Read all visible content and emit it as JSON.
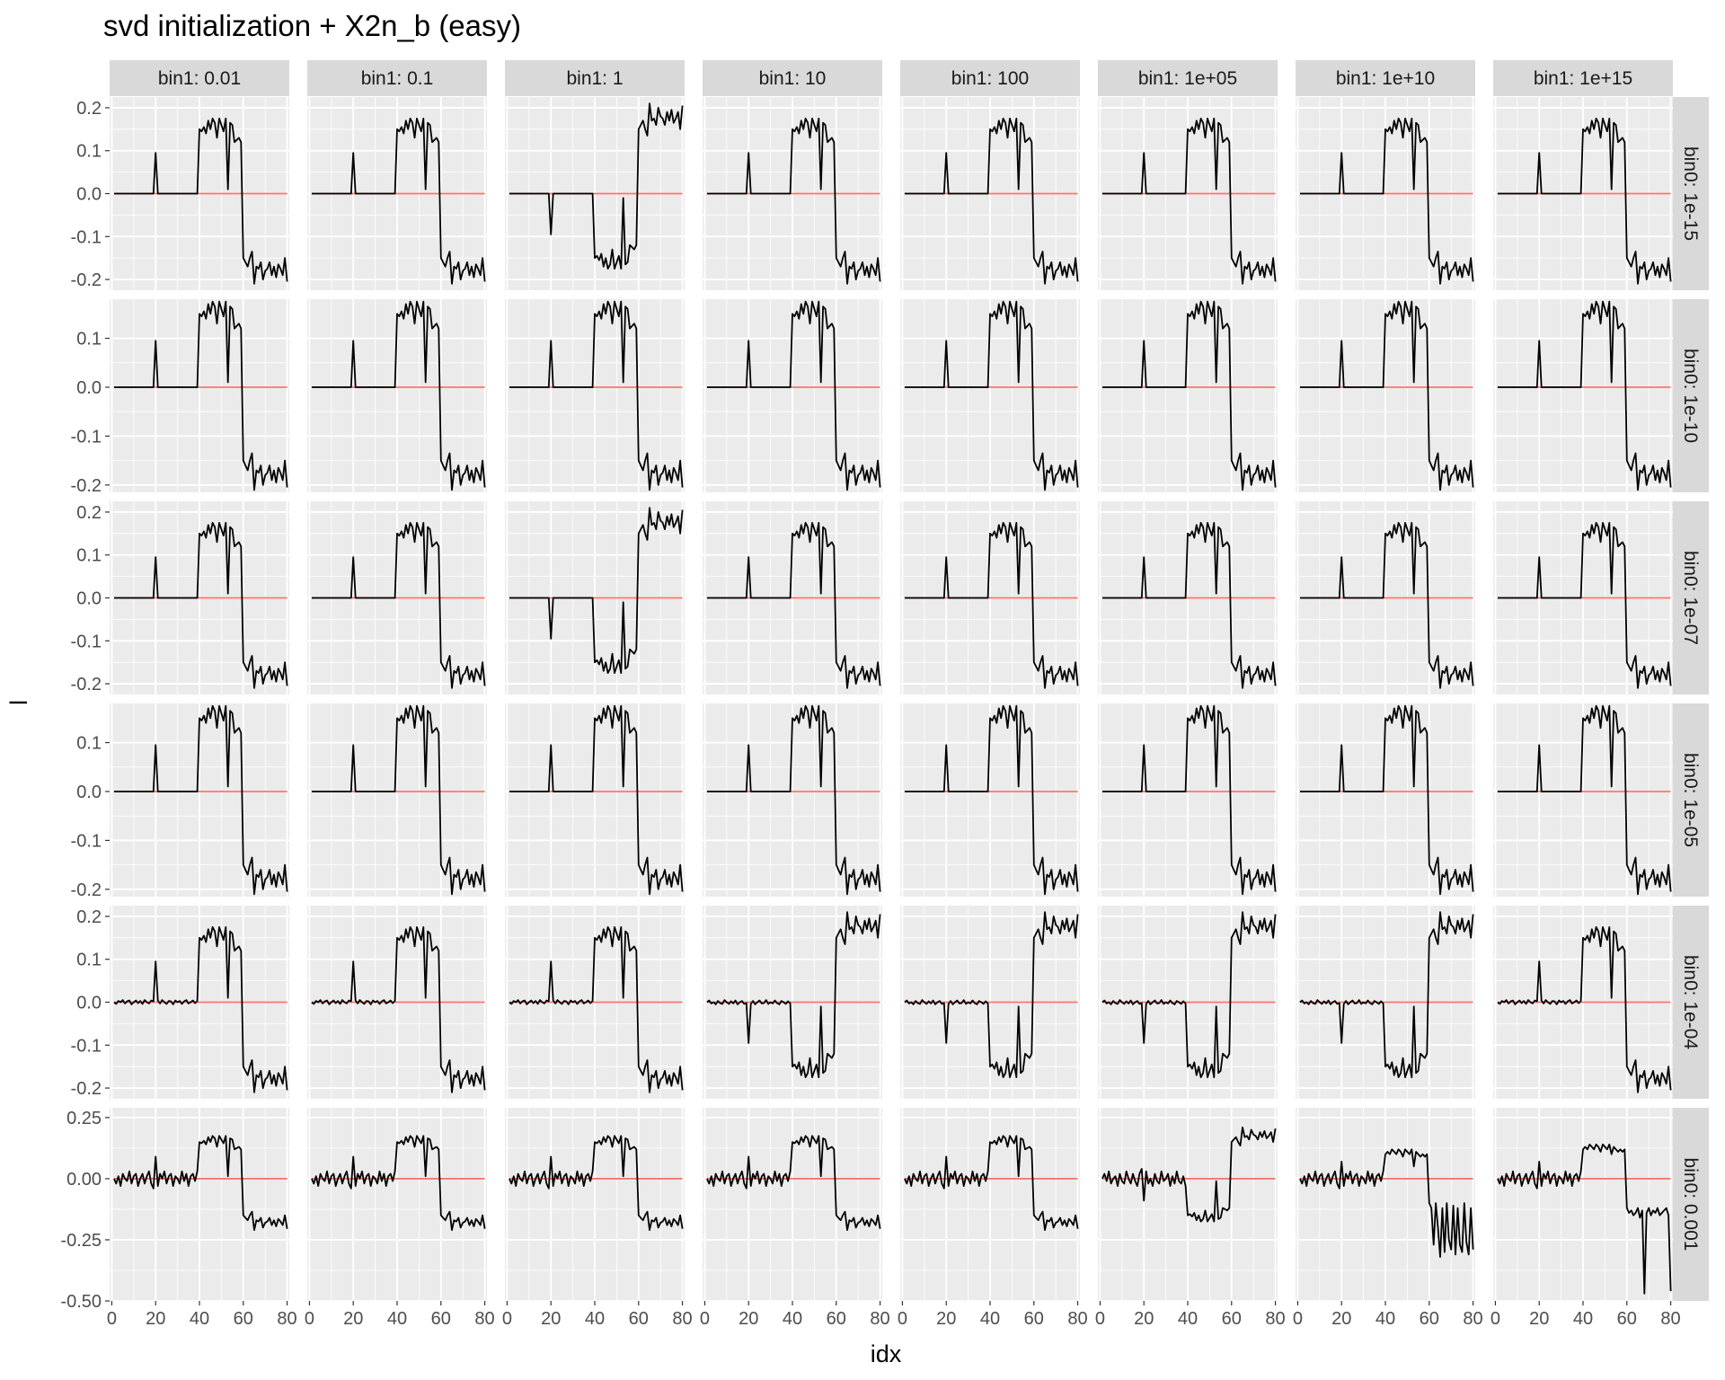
{
  "chart_data": {
    "type": "line",
    "title": "svd initialization + X2n_b (easy)",
    "xlabel": "idx",
    "ylabel": "l",
    "facet_columns": [
      "bin1: 0.01",
      "bin1: 0.1",
      "bin1: 1",
      "bin1: 10",
      "bin1: 100",
      "bin1: 1e+05",
      "bin1: 1e+10",
      "bin1: 1e+15"
    ],
    "facet_rows": [
      "bin0: 1e-15",
      "bin0: 1e-10",
      "bin0: 1e-07",
      "bin0: 1e-05",
      "bin0: 1e-04",
      "bin0: 0.001"
    ],
    "xlim": [
      -1,
      81
    ],
    "x_ticks": [
      0,
      20,
      40,
      60,
      80
    ],
    "x_tick_labels": [
      "0",
      "20",
      "40",
      "60",
      "80"
    ],
    "x": [
      1,
      2,
      3,
      4,
      5,
      6,
      7,
      8,
      9,
      10,
      11,
      12,
      13,
      14,
      15,
      16,
      17,
      18,
      19,
      20,
      21,
      22,
      23,
      24,
      25,
      26,
      27,
      28,
      29,
      30,
      31,
      32,
      33,
      34,
      35,
      36,
      37,
      38,
      39,
      40,
      41,
      42,
      43,
      44,
      45,
      46,
      47,
      48,
      49,
      50,
      51,
      52,
      53,
      54,
      55,
      56,
      57,
      58,
      59,
      60,
      61,
      62,
      63,
      64,
      65,
      66,
      67,
      68,
      69,
      70,
      71,
      72,
      73,
      74,
      75,
      76,
      77,
      78,
      79,
      80
    ],
    "reference_line": {
      "y": 0,
      "color": "#f8766d"
    },
    "rows": [
      {
        "facet": "bin0: 1e-15",
        "ylim": [
          -0.225,
          0.225
        ],
        "y_ticks": [
          -0.2,
          -0.1,
          0.0,
          0.1,
          0.2
        ],
        "y_tick_labels": [
          "-0.2",
          "-0.1",
          "0.0",
          "0.1",
          "0.2"
        ],
        "curves": [
          "A",
          "A",
          "F",
          "A",
          "A",
          "A",
          "A",
          "A"
        ]
      },
      {
        "facet": "bin0: 1e-10",
        "ylim": [
          -0.215,
          0.18
        ],
        "y_ticks": [
          -0.2,
          -0.1,
          0.0,
          0.1
        ],
        "y_tick_labels": [
          "-0.2",
          "-0.1",
          "0.0",
          "0.1"
        ],
        "curves": [
          "A",
          "A",
          "A",
          "A",
          "A",
          "A",
          "A",
          "A"
        ]
      },
      {
        "facet": "bin0: 1e-07",
        "ylim": [
          -0.225,
          0.225
        ],
        "y_ticks": [
          -0.2,
          -0.1,
          0.0,
          0.1,
          0.2
        ],
        "y_tick_labels": [
          "-0.2",
          "-0.1",
          "0.0",
          "0.1",
          "0.2"
        ],
        "curves": [
          "A",
          "A",
          "F",
          "A",
          "A",
          "A",
          "A",
          "A"
        ]
      },
      {
        "facet": "bin0: 1e-05",
        "ylim": [
          -0.215,
          0.18
        ],
        "y_ticks": [
          -0.2,
          -0.1,
          0.0,
          0.1
        ],
        "y_tick_labels": [
          "-0.2",
          "-0.1",
          "0.0",
          "0.1"
        ],
        "curves": [
          "A",
          "A",
          "A",
          "A",
          "A",
          "A",
          "A",
          "A"
        ]
      },
      {
        "facet": "bin0: 1e-04",
        "ylim": [
          -0.225,
          0.225
        ],
        "y_ticks": [
          -0.2,
          -0.1,
          0.0,
          0.1,
          0.2
        ],
        "y_tick_labels": [
          "-0.2",
          "-0.1",
          "0.0",
          "0.1",
          "0.2"
        ],
        "curves": [
          "B",
          "B",
          "B",
          "G",
          "G",
          "G",
          "G",
          "B"
        ]
      },
      {
        "facet": "bin0: 0.001",
        "ylim": [
          -0.5,
          0.29
        ],
        "y_ticks": [
          -0.5,
          -0.25,
          0.0,
          0.25
        ],
        "y_tick_labels": [
          "-0.50",
          "-0.25",
          "0.00",
          "0.25"
        ],
        "curves": [
          "C",
          "C",
          "C",
          "C",
          "C",
          "H",
          "D",
          "E"
        ]
      }
    ],
    "curves": {
      "A": [
        0,
        0,
        0,
        0,
        0,
        0,
        0,
        0,
        0,
        0,
        0,
        0,
        0,
        0,
        0,
        0,
        0,
        0,
        0,
        0.095,
        0,
        0,
        0,
        0,
        0,
        0,
        0,
        0,
        0,
        0,
        0,
        0,
        0,
        0,
        0,
        0,
        0,
        0,
        0,
        0.15,
        0.145,
        0.155,
        0.14,
        0.17,
        0.15,
        0.175,
        0.165,
        0.13,
        0.175,
        0.16,
        0.145,
        0.175,
        0.01,
        0.165,
        0.16,
        0.12,
        0.125,
        0.13,
        0.12,
        -0.15,
        -0.16,
        -0.17,
        -0.15,
        -0.135,
        -0.21,
        -0.17,
        -0.175,
        -0.16,
        -0.2,
        -0.18,
        -0.175,
        -0.16,
        -0.19,
        -0.17,
        -0.195,
        -0.165,
        -0.175,
        -0.19,
        -0.15,
        -0.205
      ],
      "F": [
        0,
        0,
        0,
        0,
        0,
        0,
        0,
        0,
        0,
        0,
        0,
        0,
        0,
        0,
        0,
        0,
        0,
        0,
        0,
        -0.095,
        0,
        0,
        0,
        0,
        0,
        0,
        0,
        0,
        0,
        0,
        0,
        0,
        0,
        0,
        0,
        0,
        0,
        0,
        0,
        -0.15,
        -0.145,
        -0.155,
        -0.14,
        -0.17,
        -0.15,
        -0.175,
        -0.165,
        -0.13,
        -0.175,
        -0.16,
        -0.145,
        -0.175,
        -0.01,
        -0.165,
        -0.16,
        -0.12,
        -0.125,
        -0.13,
        -0.12,
        0.15,
        0.16,
        0.17,
        0.15,
        0.135,
        0.21,
        0.17,
        0.175,
        0.16,
        0.2,
        0.18,
        0.175,
        0.16,
        0.19,
        0.17,
        0.195,
        0.165,
        0.175,
        0.19,
        0.15,
        0.205
      ],
      "B": [
        0,
        -0.004,
        0.003,
        0,
        0.005,
        -0.003,
        0.002,
        0.004,
        -0.005,
        0,
        0.004,
        -0.002,
        0.003,
        -0.004,
        0.005,
        0,
        -0.003,
        0.004,
        0.002,
        0.095,
        0.004,
        -0.003,
        0.005,
        0,
        -0.004,
        0.003,
        0.002,
        -0.005,
        0.004,
        0,
        0.003,
        -0.004,
        0.002,
        0.005,
        -0.003,
        0,
        0.004,
        -0.002,
        0.003,
        0.15,
        0.145,
        0.155,
        0.14,
        0.17,
        0.15,
        0.175,
        0.165,
        0.13,
        0.175,
        0.16,
        0.145,
        0.175,
        0.01,
        0.165,
        0.16,
        0.12,
        0.125,
        0.13,
        0.12,
        -0.15,
        -0.16,
        -0.17,
        -0.15,
        -0.135,
        -0.21,
        -0.17,
        -0.175,
        -0.16,
        -0.2,
        -0.18,
        -0.175,
        -0.16,
        -0.19,
        -0.17,
        -0.195,
        -0.165,
        -0.175,
        -0.19,
        -0.15,
        -0.205
      ],
      "G": [
        0,
        0.004,
        -0.003,
        0,
        -0.005,
        0.003,
        -0.002,
        -0.004,
        0.005,
        0,
        -0.004,
        0.002,
        -0.003,
        0.004,
        -0.005,
        0,
        0.003,
        -0.004,
        -0.002,
        -0.095,
        -0.004,
        0.003,
        -0.005,
        0,
        0.004,
        -0.003,
        -0.002,
        0.005,
        -0.004,
        0,
        -0.003,
        0.004,
        -0.002,
        -0.005,
        0.003,
        0,
        -0.004,
        0.002,
        -0.003,
        -0.15,
        -0.145,
        -0.155,
        -0.14,
        -0.17,
        -0.15,
        -0.175,
        -0.165,
        -0.13,
        -0.175,
        -0.16,
        -0.145,
        -0.175,
        -0.01,
        -0.165,
        -0.16,
        -0.12,
        -0.125,
        -0.13,
        -0.12,
        0.15,
        0.16,
        0.17,
        0.15,
        0.135,
        0.21,
        0.17,
        0.175,
        0.16,
        0.2,
        0.18,
        0.175,
        0.16,
        0.19,
        0.17,
        0.195,
        0.165,
        0.175,
        0.19,
        0.15,
        0.205
      ],
      "C": [
        0,
        -0.02,
        0.01,
        -0.03,
        0.02,
        0,
        -0.01,
        0.03,
        -0.02,
        0.01,
        0.02,
        -0.03,
        0,
        0.02,
        -0.02,
        0.01,
        0.03,
        -0.02,
        -0.04,
        0.09,
        -0.03,
        0.02,
        0,
        0.03,
        -0.02,
        0.01,
        0.02,
        -0.03,
        0.01,
        0,
        -0.02,
        0.03,
        -0.01,
        0.02,
        -0.03,
        0.01,
        0.02,
        -0.01,
        0.03,
        0.15,
        0.145,
        0.155,
        0.14,
        0.17,
        0.15,
        0.175,
        0.165,
        0.13,
        0.175,
        0.16,
        0.145,
        0.175,
        0.01,
        0.165,
        0.16,
        0.12,
        0.125,
        0.13,
        0.12,
        -0.15,
        -0.16,
        -0.17,
        -0.15,
        -0.135,
        -0.21,
        -0.17,
        -0.175,
        -0.16,
        -0.2,
        -0.18,
        -0.175,
        -0.16,
        -0.19,
        -0.17,
        -0.195,
        -0.165,
        -0.175,
        -0.19,
        -0.15,
        -0.205
      ],
      "H": [
        0,
        0.02,
        -0.01,
        0.03,
        -0.02,
        0,
        0.01,
        -0.03,
        0.02,
        -0.01,
        -0.02,
        0.03,
        0,
        -0.02,
        0.02,
        -0.01,
        -0.03,
        0.02,
        0.04,
        -0.09,
        0.03,
        -0.02,
        0,
        -0.03,
        0.02,
        -0.01,
        -0.02,
        0.03,
        -0.01,
        0,
        0.02,
        -0.03,
        0.01,
        -0.02,
        0.03,
        -0.01,
        -0.02,
        0.01,
        -0.03,
        -0.15,
        -0.145,
        -0.155,
        -0.14,
        -0.17,
        -0.15,
        -0.175,
        -0.165,
        -0.13,
        -0.175,
        -0.16,
        -0.145,
        -0.175,
        -0.01,
        -0.165,
        -0.16,
        -0.12,
        -0.125,
        -0.13,
        -0.12,
        0.15,
        0.16,
        0.17,
        0.15,
        0.135,
        0.21,
        0.17,
        0.175,
        0.16,
        0.2,
        0.18,
        0.175,
        0.16,
        0.19,
        0.17,
        0.195,
        0.165,
        0.175,
        0.19,
        0.15,
        0.205
      ],
      "D": [
        0,
        -0.02,
        0.01,
        -0.03,
        0.02,
        0,
        -0.01,
        0.03,
        -0.02,
        0.01,
        0.02,
        -0.03,
        0,
        0.02,
        -0.02,
        0.01,
        0.03,
        -0.02,
        -0.04,
        0.07,
        -0.03,
        0.02,
        0,
        0.03,
        -0.02,
        0.01,
        0.02,
        -0.03,
        0.01,
        0,
        -0.02,
        0.03,
        -0.01,
        0.02,
        -0.03,
        0.01,
        0.02,
        -0.01,
        0.03,
        0.1,
        0.11,
        0.1,
        0.12,
        0.11,
        0.1,
        0.12,
        0.11,
        0.09,
        0.12,
        0.11,
        0.1,
        0.12,
        0.05,
        0.11,
        0.1,
        0.09,
        0.1,
        0.09,
        0.1,
        -0.1,
        -0.12,
        -0.27,
        -0.1,
        -0.2,
        -0.32,
        -0.12,
        -0.3,
        -0.1,
        -0.25,
        -0.29,
        -0.11,
        -0.31,
        -0.12,
        -0.27,
        -0.3,
        -0.1,
        -0.26,
        -0.31,
        -0.12,
        -0.29
      ],
      "E": [
        0,
        -0.02,
        0.01,
        -0.03,
        0.02,
        0,
        -0.01,
        0.03,
        -0.02,
        0.01,
        0.02,
        -0.03,
        0,
        0.02,
        -0.02,
        0.01,
        0.03,
        -0.02,
        -0.04,
        0.07,
        -0.03,
        0.02,
        0,
        0.03,
        -0.02,
        0.01,
        0.02,
        -0.03,
        0.01,
        0,
        -0.02,
        0.03,
        -0.01,
        0.02,
        -0.03,
        0.01,
        0.02,
        -0.01,
        0.03,
        0.12,
        0.13,
        0.12,
        0.14,
        0.13,
        0.12,
        0.14,
        0.13,
        0.11,
        0.14,
        0.13,
        0.12,
        0.14,
        0.1,
        0.13,
        0.12,
        0.11,
        0.12,
        0.11,
        0.12,
        -0.12,
        -0.14,
        -0.13,
        -0.15,
        -0.14,
        -0.12,
        -0.16,
        -0.13,
        -0.47,
        -0.14,
        -0.12,
        -0.15,
        -0.13,
        -0.14,
        -0.12,
        -0.15,
        -0.14,
        -0.13,
        -0.12,
        -0.15,
        -0.46
      ]
    }
  }
}
